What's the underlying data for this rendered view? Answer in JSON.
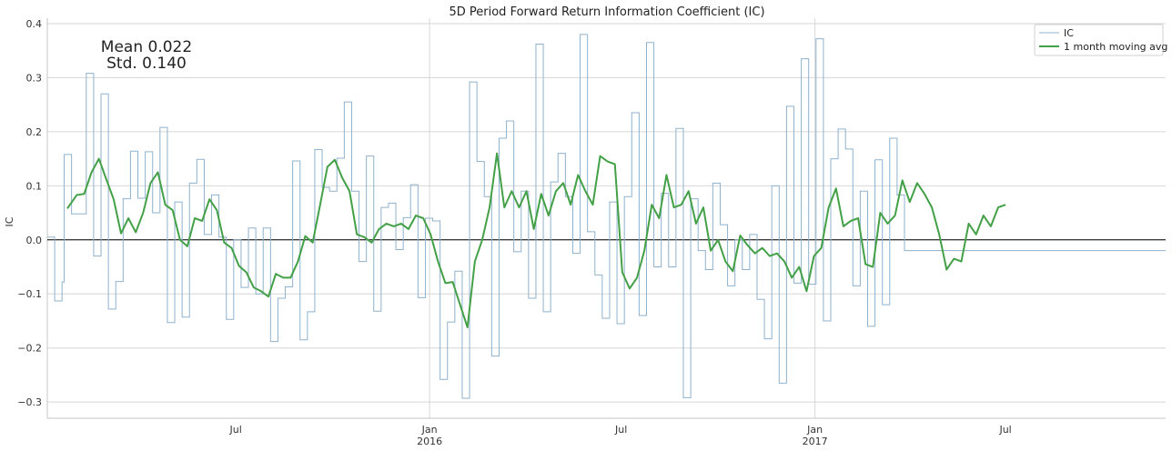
{
  "chart_data": {
    "type": "line",
    "title": "5D Period Forward Return Information Coefficient (IC)",
    "ylabel": "IC",
    "xlabel": "",
    "ylim": [
      -0.33,
      0.41
    ],
    "xlim": [
      "2015-01-03",
      "2017-11-30"
    ],
    "yticks": [
      -0.3,
      -0.2,
      -0.1,
      0.0,
      0.1,
      0.2,
      0.3,
      0.4
    ],
    "ytick_labels": [
      "−0.3",
      "−0.2",
      "−0.1",
      "0.0",
      "0.1",
      "0.2",
      "0.3",
      "0.4"
    ],
    "xticks": [
      {
        "date": "2015-07-01",
        "label": "Jul",
        "sublabel": ""
      },
      {
        "date": "2016-01-01",
        "label": "Jan",
        "sublabel": "2016"
      },
      {
        "date": "2016-07-01",
        "label": "Jul",
        "sublabel": ""
      },
      {
        "date": "2017-01-01",
        "label": "Jan",
        "sublabel": "2017"
      },
      {
        "date": "2017-07-01",
        "label": "Jul",
        "sublabel": ""
      }
    ],
    "vertical_gridlines": [
      "2016-01-01",
      "2017-01-01"
    ],
    "horizontal_line": 0.0,
    "grid": true,
    "legend_position": "top-right",
    "stats": {
      "mean_label": "Mean 0.022",
      "std_label": "Std. 0.140"
    },
    "colors": {
      "ic": "#8fb1cc",
      "ma": "#43a047",
      "zero": "#000000",
      "grid": "#d6d6d6"
    },
    "series": [
      {
        "name": "IC",
        "points": [
          [
            "2015-01-03",
            0.005
          ],
          [
            "2015-01-10",
            -0.113
          ],
          [
            "2015-01-17",
            -0.078
          ],
          [
            "2015-01-19",
            0.158
          ],
          [
            "2015-01-26",
            0.048
          ],
          [
            "2015-02-09",
            0.308
          ],
          [
            "2015-02-16",
            -0.03
          ],
          [
            "2015-02-23",
            0.27
          ],
          [
            "2015-03-02",
            -0.128
          ],
          [
            "2015-03-09",
            -0.077
          ],
          [
            "2015-03-16",
            0.076
          ],
          [
            "2015-03-23",
            0.164
          ],
          [
            "2015-03-30",
            0.077
          ],
          [
            "2015-04-06",
            0.163
          ],
          [
            "2015-04-13",
            0.05
          ],
          [
            "2015-04-20",
            0.208
          ],
          [
            "2015-04-27",
            -0.153
          ],
          [
            "2015-05-04",
            0.07
          ],
          [
            "2015-05-11",
            -0.143
          ],
          [
            "2015-05-18",
            0.105
          ],
          [
            "2015-05-25",
            0.149
          ],
          [
            "2015-06-01",
            0.01
          ],
          [
            "2015-06-08",
            0.083
          ],
          [
            "2015-06-15",
            0.005
          ],
          [
            "2015-06-22",
            -0.147
          ],
          [
            "2015-06-29",
            0.0
          ],
          [
            "2015-07-06",
            -0.088
          ],
          [
            "2015-07-13",
            0.022
          ],
          [
            "2015-07-20",
            -0.1
          ],
          [
            "2015-07-27",
            0.022
          ],
          [
            "2015-08-03",
            -0.188
          ],
          [
            "2015-08-10",
            -0.108
          ],
          [
            "2015-08-17",
            -0.087
          ],
          [
            "2015-08-24",
            0.146
          ],
          [
            "2015-08-31",
            -0.185
          ],
          [
            "2015-09-07",
            -0.133
          ],
          [
            "2015-09-14",
            0.167
          ],
          [
            "2015-09-21",
            0.097
          ],
          [
            "2015-09-28",
            0.09
          ],
          [
            "2015-10-05",
            0.151
          ],
          [
            "2015-10-12",
            0.255
          ],
          [
            "2015-10-19",
            0.09
          ],
          [
            "2015-10-26",
            -0.04
          ],
          [
            "2015-11-02",
            0.155
          ],
          [
            "2015-11-09",
            -0.132
          ],
          [
            "2015-11-16",
            0.06
          ],
          [
            "2015-11-23",
            0.068
          ],
          [
            "2015-11-30",
            -0.018
          ],
          [
            "2015-12-07",
            0.041
          ],
          [
            "2015-12-14",
            0.102
          ],
          [
            "2015-12-21",
            -0.107
          ],
          [
            "2015-12-28",
            0.04
          ],
          [
            "2016-01-04",
            0.035
          ],
          [
            "2016-01-11",
            -0.258
          ],
          [
            "2016-01-18",
            -0.152
          ],
          [
            "2016-01-25",
            -0.058
          ],
          [
            "2016-02-01",
            -0.293
          ],
          [
            "2016-02-08",
            0.292
          ],
          [
            "2016-02-15",
            0.145
          ],
          [
            "2016-02-22",
            0.08
          ],
          [
            "2016-02-29",
            -0.215
          ],
          [
            "2016-03-07",
            0.188
          ],
          [
            "2016-03-14",
            0.22
          ],
          [
            "2016-03-21",
            -0.022
          ],
          [
            "2016-03-28",
            0.09
          ],
          [
            "2016-04-04",
            -0.108
          ],
          [
            "2016-04-11",
            0.362
          ],
          [
            "2016-04-18",
            -0.133
          ],
          [
            "2016-04-25",
            0.107
          ],
          [
            "2016-05-02",
            0.16
          ],
          [
            "2016-05-09",
            0.08
          ],
          [
            "2016-05-16",
            -0.025
          ],
          [
            "2016-05-23",
            0.38
          ],
          [
            "2016-05-30",
            0.015
          ],
          [
            "2016-06-06",
            -0.065
          ],
          [
            "2016-06-13",
            -0.145
          ],
          [
            "2016-06-20",
            0.07
          ],
          [
            "2016-06-27",
            -0.155
          ],
          [
            "2016-07-04",
            0.08
          ],
          [
            "2016-07-11",
            0.235
          ],
          [
            "2016-07-18",
            -0.14
          ],
          [
            "2016-07-25",
            0.365
          ],
          [
            "2016-08-01",
            -0.05
          ],
          [
            "2016-08-08",
            0.086
          ],
          [
            "2016-08-15",
            -0.05
          ],
          [
            "2016-08-22",
            0.206
          ],
          [
            "2016-08-29",
            -0.292
          ],
          [
            "2016-09-05",
            0.076
          ],
          [
            "2016-09-12",
            -0.02
          ],
          [
            "2016-09-19",
            -0.055
          ],
          [
            "2016-09-26",
            0.105
          ],
          [
            "2016-10-03",
            0.028
          ],
          [
            "2016-10-10",
            -0.085
          ],
          [
            "2016-10-17",
            0.0
          ],
          [
            "2016-10-24",
            -0.055
          ],
          [
            "2016-10-31",
            0.01
          ],
          [
            "2016-11-07",
            -0.11
          ],
          [
            "2016-11-14",
            -0.183
          ],
          [
            "2016-11-21",
            0.1
          ],
          [
            "2016-11-28",
            -0.265
          ],
          [
            "2016-12-05",
            0.247
          ],
          [
            "2016-12-12",
            -0.08
          ],
          [
            "2016-12-19",
            0.335
          ],
          [
            "2016-12-26",
            -0.082
          ],
          [
            "2017-01-02",
            0.372
          ],
          [
            "2017-01-09",
            -0.15
          ],
          [
            "2017-01-16",
            0.15
          ],
          [
            "2017-01-23",
            0.205
          ],
          [
            "2017-01-30",
            0.168
          ],
          [
            "2017-02-06",
            -0.085
          ],
          [
            "2017-02-13",
            0.09
          ],
          [
            "2017-02-20",
            -0.16
          ],
          [
            "2017-02-27",
            0.148
          ],
          [
            "2017-03-06",
            -0.12
          ],
          [
            "2017-03-13",
            0.188
          ],
          [
            "2017-03-20",
            0.083
          ],
          [
            "2017-03-27",
            -0.02
          ]
        ]
      },
      {
        "name": "1 month moving avg",
        "points": [
          [
            "2015-01-22",
            0.058
          ],
          [
            "2015-01-31",
            0.083
          ],
          [
            "2015-02-07",
            0.085
          ],
          [
            "2015-02-14",
            0.125
          ],
          [
            "2015-02-21",
            0.15
          ],
          [
            "2015-02-28",
            0.112
          ],
          [
            "2015-03-07",
            0.075
          ],
          [
            "2015-03-14",
            0.012
          ],
          [
            "2015-03-21",
            0.04
          ],
          [
            "2015-03-28",
            0.014
          ],
          [
            "2015-04-04",
            0.05
          ],
          [
            "2015-04-11",
            0.105
          ],
          [
            "2015-04-18",
            0.125
          ],
          [
            "2015-04-25",
            0.065
          ],
          [
            "2015-05-02",
            0.055
          ],
          [
            "2015-05-09",
            0.0
          ],
          [
            "2015-05-16",
            -0.012
          ],
          [
            "2015-05-23",
            0.04
          ],
          [
            "2015-05-30",
            0.035
          ],
          [
            "2015-06-06",
            0.075
          ],
          [
            "2015-06-13",
            0.055
          ],
          [
            "2015-06-20",
            -0.005
          ],
          [
            "2015-06-27",
            -0.015
          ],
          [
            "2015-07-04",
            -0.048
          ],
          [
            "2015-07-11",
            -0.06
          ],
          [
            "2015-07-18",
            -0.088
          ],
          [
            "2015-07-25",
            -0.095
          ],
          [
            "2015-08-01",
            -0.105
          ],
          [
            "2015-08-08",
            -0.063
          ],
          [
            "2015-08-15",
            -0.07
          ],
          [
            "2015-08-22",
            -0.07
          ],
          [
            "2015-08-29",
            -0.04
          ],
          [
            "2015-09-05",
            0.007
          ],
          [
            "2015-09-12",
            -0.005
          ],
          [
            "2015-09-19",
            0.064
          ],
          [
            "2015-09-26",
            0.135
          ],
          [
            "2015-10-03",
            0.148
          ],
          [
            "2015-10-10",
            0.115
          ],
          [
            "2015-10-17",
            0.09
          ],
          [
            "2015-10-24",
            0.01
          ],
          [
            "2015-10-31",
            0.005
          ],
          [
            "2015-11-07",
            -0.005
          ],
          [
            "2015-11-14",
            0.02
          ],
          [
            "2015-11-21",
            0.03
          ],
          [
            "2015-11-28",
            0.025
          ],
          [
            "2015-12-05",
            0.03
          ],
          [
            "2015-12-12",
            0.02
          ],
          [
            "2015-12-19",
            0.045
          ],
          [
            "2015-12-26",
            0.04
          ],
          [
            "2016-01-02",
            0.01
          ],
          [
            "2016-01-09",
            -0.04
          ],
          [
            "2016-01-16",
            -0.08
          ],
          [
            "2016-01-23",
            -0.078
          ],
          [
            "2016-01-30",
            -0.12
          ],
          [
            "2016-02-06",
            -0.162
          ],
          [
            "2016-02-13",
            -0.04
          ],
          [
            "2016-02-20",
            0.0
          ],
          [
            "2016-02-27",
            0.06
          ],
          [
            "2016-03-05",
            0.16
          ],
          [
            "2016-03-12",
            0.06
          ],
          [
            "2016-03-19",
            0.09
          ],
          [
            "2016-03-26",
            0.06
          ],
          [
            "2016-04-02",
            0.09
          ],
          [
            "2016-04-09",
            0.02
          ],
          [
            "2016-04-16",
            0.085
          ],
          [
            "2016-04-23",
            0.045
          ],
          [
            "2016-04-30",
            0.09
          ],
          [
            "2016-05-07",
            0.105
          ],
          [
            "2016-05-14",
            0.065
          ],
          [
            "2016-05-21",
            0.12
          ],
          [
            "2016-05-28",
            0.09
          ],
          [
            "2016-06-04",
            0.065
          ],
          [
            "2016-06-11",
            0.155
          ],
          [
            "2016-06-18",
            0.145
          ],
          [
            "2016-06-25",
            0.14
          ],
          [
            "2016-07-02",
            -0.06
          ],
          [
            "2016-07-09",
            -0.09
          ],
          [
            "2016-07-16",
            -0.07
          ],
          [
            "2016-07-23",
            -0.02
          ],
          [
            "2016-07-30",
            0.065
          ],
          [
            "2016-08-06",
            0.04
          ],
          [
            "2016-08-13",
            0.12
          ],
          [
            "2016-08-20",
            0.06
          ],
          [
            "2016-08-27",
            0.065
          ],
          [
            "2016-09-03",
            0.09
          ],
          [
            "2016-09-10",
            0.03
          ],
          [
            "2016-09-17",
            0.06
          ],
          [
            "2016-09-24",
            -0.02
          ],
          [
            "2016-10-01",
            0.0
          ],
          [
            "2016-10-08",
            -0.04
          ],
          [
            "2016-10-15",
            -0.058
          ],
          [
            "2016-10-22",
            0.008
          ],
          [
            "2016-10-29",
            -0.01
          ],
          [
            "2016-11-05",
            -0.025
          ],
          [
            "2016-11-12",
            -0.015
          ],
          [
            "2016-11-19",
            -0.03
          ],
          [
            "2016-11-26",
            -0.025
          ],
          [
            "2016-12-03",
            -0.04
          ],
          [
            "2016-12-10",
            -0.07
          ],
          [
            "2016-12-17",
            -0.05
          ],
          [
            "2016-12-24",
            -0.095
          ],
          [
            "2016-12-31",
            -0.03
          ],
          [
            "2017-01-07",
            -0.015
          ],
          [
            "2017-01-14",
            0.06
          ],
          [
            "2017-01-21",
            0.095
          ],
          [
            "2017-01-28",
            0.025
          ],
          [
            "2017-02-04",
            0.035
          ],
          [
            "2017-02-11",
            0.04
          ],
          [
            "2017-02-18",
            -0.045
          ],
          [
            "2017-02-25",
            -0.05
          ],
          [
            "2017-03-04",
            0.05
          ],
          [
            "2017-03-11",
            0.03
          ],
          [
            "2017-03-18",
            0.045
          ],
          [
            "2017-03-25",
            0.11
          ],
          [
            "2017-04-01",
            0.07
          ],
          [
            "2017-04-08",
            0.105
          ],
          [
            "2017-04-15",
            0.085
          ],
          [
            "2017-04-22",
            0.06
          ],
          [
            "2017-04-29",
            0.01
          ],
          [
            "2017-05-06",
            -0.055
          ],
          [
            "2017-05-13",
            -0.035
          ],
          [
            "2017-05-20",
            -0.04
          ],
          [
            "2017-05-27",
            0.03
          ],
          [
            "2017-06-03",
            0.01
          ],
          [
            "2017-06-10",
            0.045
          ],
          [
            "2017-06-17",
            0.025
          ],
          [
            "2017-06-24",
            0.06
          ],
          [
            "2017-07-01",
            0.065
          ]
        ]
      }
    ]
  }
}
